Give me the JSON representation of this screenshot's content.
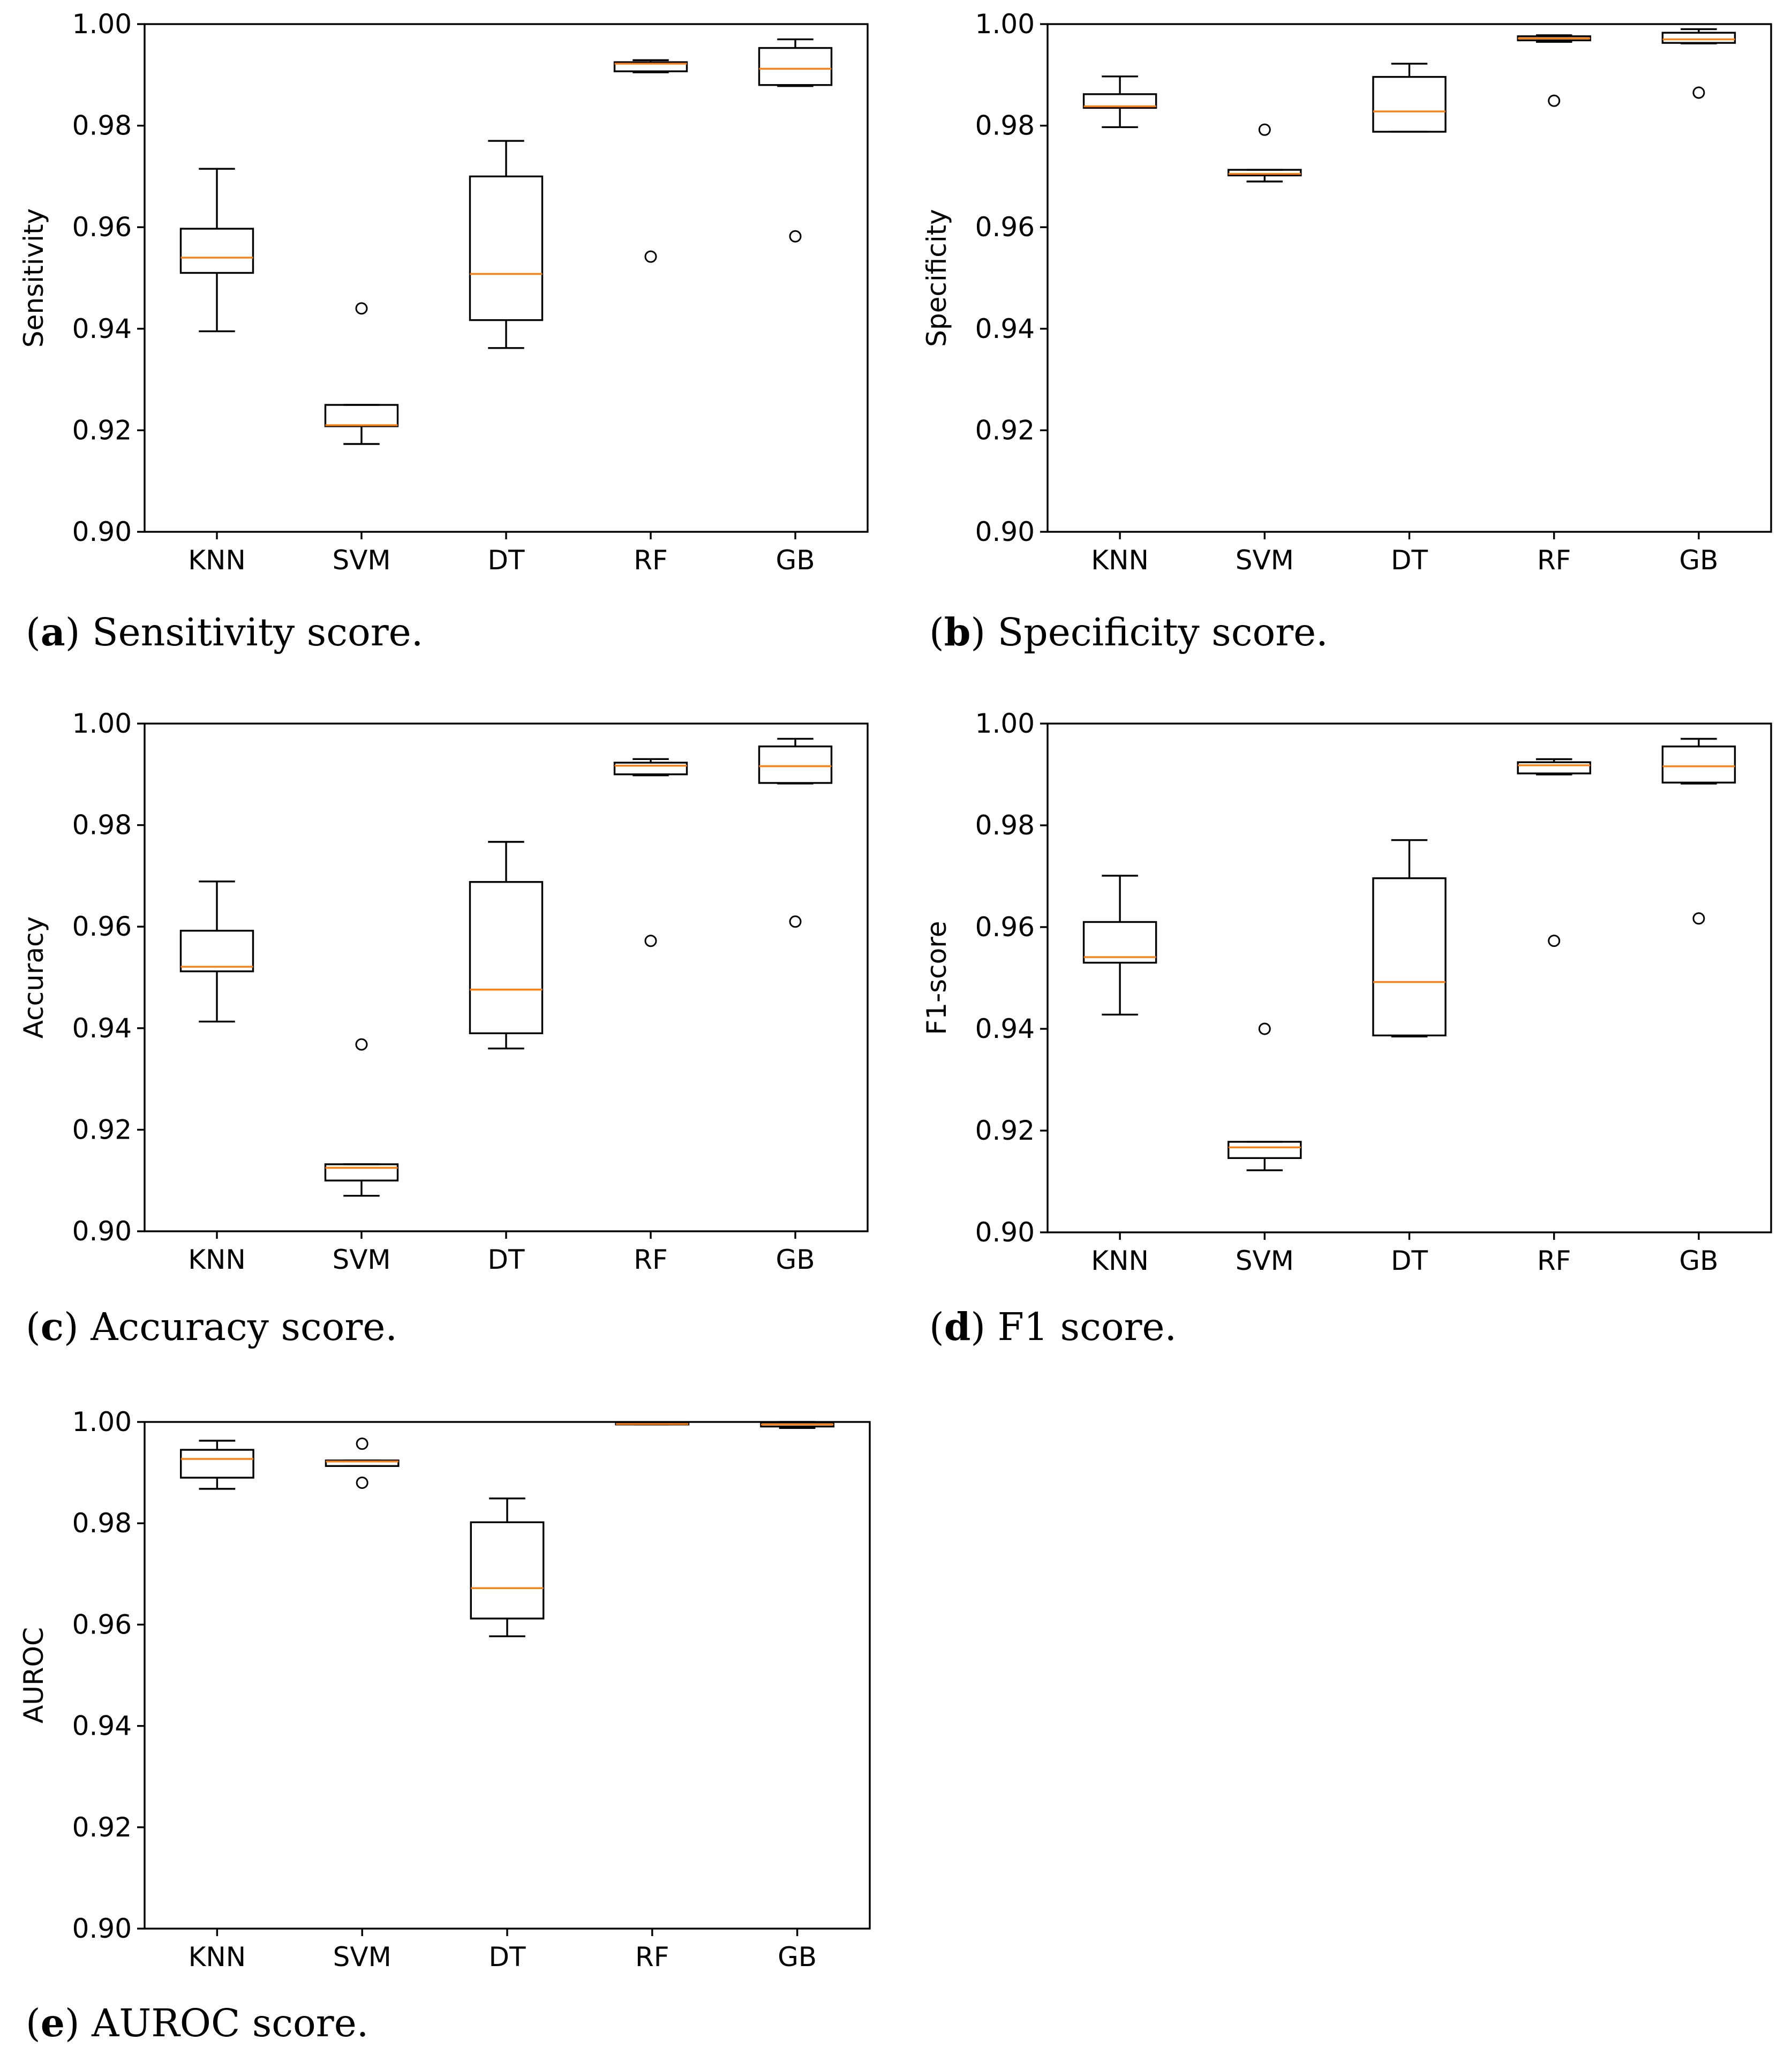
{
  "colors": {
    "median": "#ff7f0e",
    "stroke": "#000000",
    "background": "#ffffff"
  },
  "chart_data": [
    {
      "type": "box",
      "panel": "a",
      "caption_letter": "a",
      "caption_text": "Sensitivity score.",
      "ylabel": "Sensitivity",
      "ylim": [
        0.9,
        1.0
      ],
      "yticks": [
        "0.90",
        "0.92",
        "0.94",
        "0.96",
        "0.98",
        "1.00"
      ],
      "categories": [
        "KNN",
        "SVM",
        "DT",
        "RF",
        "GB"
      ],
      "boxes": [
        {
          "label": "KNN",
          "whislo": 0.9395,
          "q1": 0.951,
          "med": 0.954,
          "q3": 0.9597,
          "whishi": 0.9715,
          "fliers": []
        },
        {
          "label": "SVM",
          "whislo": 0.9173,
          "q1": 0.9208,
          "med": 0.921,
          "q3": 0.925,
          "whishi": 0.925,
          "fliers": [
            0.944
          ]
        },
        {
          "label": "DT",
          "whislo": 0.9362,
          "q1": 0.9417,
          "med": 0.9508,
          "q3": 0.97,
          "whishi": 0.977,
          "fliers": []
        },
        {
          "label": "RF",
          "whislo": 0.9905,
          "q1": 0.9907,
          "med": 0.9922,
          "q3": 0.9925,
          "whishi": 0.9929,
          "fliers": [
            0.9542
          ]
        },
        {
          "label": "GB",
          "whislo": 0.9878,
          "q1": 0.988,
          "med": 0.9912,
          "q3": 0.9953,
          "whishi": 0.997,
          "fliers": [
            0.9582
          ]
        }
      ]
    },
    {
      "type": "box",
      "panel": "b",
      "caption_letter": "b",
      "caption_text": "Specificity score.",
      "ylabel": "Specificity",
      "ylim": [
        0.9,
        1.0
      ],
      "yticks": [
        "0.90",
        "0.92",
        "0.94",
        "0.96",
        "0.98",
        "1.00"
      ],
      "categories": [
        "KNN",
        "SVM",
        "DT",
        "RF",
        "GB"
      ],
      "boxes": [
        {
          "label": "KNN",
          "whislo": 0.9797,
          "q1": 0.9835,
          "med": 0.9838,
          "q3": 0.9862,
          "whishi": 0.9897,
          "fliers": []
        },
        {
          "label": "SVM",
          "whislo": 0.969,
          "q1": 0.9702,
          "med": 0.9705,
          "q3": 0.9713,
          "whishi": 0.9713,
          "fliers": [
            0.9792
          ]
        },
        {
          "label": "DT",
          "whislo": 0.9788,
          "q1": 0.9788,
          "med": 0.9828,
          "q3": 0.9896,
          "whishi": 0.9922,
          "fliers": []
        },
        {
          "label": "RF",
          "whislo": 0.9965,
          "q1": 0.9968,
          "med": 0.9972,
          "q3": 0.9976,
          "whishi": 0.9978,
          "fliers": [
            0.9849
          ]
        },
        {
          "label": "GB",
          "whislo": 0.9962,
          "q1": 0.9963,
          "med": 0.997,
          "q3": 0.9983,
          "whishi": 0.999,
          "fliers": [
            0.9865
          ]
        }
      ]
    },
    {
      "type": "box",
      "panel": "c",
      "caption_letter": "c",
      "caption_text": "Accuracy score.",
      "ylabel": "Accuracy",
      "ylim": [
        0.9,
        1.0
      ],
      "yticks": [
        "0.90",
        "0.92",
        "0.94",
        "0.96",
        "0.98",
        "1.00"
      ],
      "categories": [
        "KNN",
        "SVM",
        "DT",
        "RF",
        "GB"
      ],
      "boxes": [
        {
          "label": "KNN",
          "whislo": 0.9413,
          "q1": 0.9512,
          "med": 0.9521,
          "q3": 0.9592,
          "whishi": 0.9689,
          "fliers": []
        },
        {
          "label": "SVM",
          "whislo": 0.907,
          "q1": 0.91,
          "med": 0.9125,
          "q3": 0.9132,
          "whishi": 0.9132,
          "fliers": [
            0.9368
          ]
        },
        {
          "label": "DT",
          "whislo": 0.936,
          "q1": 0.939,
          "med": 0.9476,
          "q3": 0.9688,
          "whishi": 0.9767,
          "fliers": []
        },
        {
          "label": "RF",
          "whislo": 0.9898,
          "q1": 0.99,
          "med": 0.9917,
          "q3": 0.9923,
          "whishi": 0.993,
          "fliers": [
            0.9572
          ]
        },
        {
          "label": "GB",
          "whislo": 0.9882,
          "q1": 0.9883,
          "med": 0.9916,
          "q3": 0.9955,
          "whishi": 0.997,
          "fliers": [
            0.961
          ]
        }
      ]
    },
    {
      "type": "box",
      "panel": "d",
      "caption_letter": "d",
      "caption_text": "F1 score.",
      "ylabel": "F1-score",
      "ylim": [
        0.9,
        1.0
      ],
      "yticks": [
        "0.90",
        "0.92",
        "0.94",
        "0.96",
        "0.98",
        "1.00"
      ],
      "categories": [
        "KNN",
        "SVM",
        "DT",
        "RF",
        "GB"
      ],
      "boxes": [
        {
          "label": "KNN",
          "whislo": 0.9428,
          "q1": 0.953,
          "med": 0.9541,
          "q3": 0.961,
          "whishi": 0.9701,
          "fliers": []
        },
        {
          "label": "SVM",
          "whislo": 0.9122,
          "q1": 0.9146,
          "med": 0.9167,
          "q3": 0.9178,
          "whishi": 0.9178,
          "fliers": [
            0.94
          ]
        },
        {
          "label": "DT",
          "whislo": 0.9385,
          "q1": 0.9387,
          "med": 0.9492,
          "q3": 0.9696,
          "whishi": 0.9771,
          "fliers": []
        },
        {
          "label": "RF",
          "whislo": 0.99,
          "q1": 0.9902,
          "med": 0.9918,
          "q3": 0.9924,
          "whishi": 0.993,
          "fliers": [
            0.9573
          ]
        },
        {
          "label": "GB",
          "whislo": 0.9882,
          "q1": 0.9884,
          "med": 0.9916,
          "q3": 0.9955,
          "whishi": 0.997,
          "fliers": [
            0.9617
          ]
        }
      ]
    },
    {
      "type": "box",
      "panel": "e",
      "caption_letter": "e",
      "caption_text": "AUROC score.",
      "ylabel": "AUROC",
      "ylim": [
        0.9,
        1.0
      ],
      "yticks": [
        "0.90",
        "0.92",
        "0.94",
        "0.96",
        "0.98",
        "1.00"
      ],
      "categories": [
        "KNN",
        "SVM",
        "DT",
        "RF",
        "GB"
      ],
      "boxes": [
        {
          "label": "KNN",
          "whislo": 0.9868,
          "q1": 0.989,
          "med": 0.9927,
          "q3": 0.9945,
          "whishi": 0.9963,
          "fliers": []
        },
        {
          "label": "SVM",
          "whislo": 0.9913,
          "q1": 0.9913,
          "med": 0.9922,
          "q3": 0.9924,
          "whishi": 0.9924,
          "fliers": [
            0.9957,
            0.988
          ]
        },
        {
          "label": "DT",
          "whislo": 0.9577,
          "q1": 0.9612,
          "med": 0.9672,
          "q3": 0.9802,
          "whishi": 0.9849,
          "fliers": []
        },
        {
          "label": "RF",
          "whislo": 0.9995,
          "q1": 0.9995,
          "med": 0.9996,
          "q3": 0.9998,
          "whishi": 0.9999,
          "fliers": []
        },
        {
          "label": "GB",
          "whislo": 0.9988,
          "q1": 0.9991,
          "med": 0.9995,
          "q3": 0.9999,
          "whishi": 1.0,
          "fliers": []
        }
      ]
    }
  ]
}
